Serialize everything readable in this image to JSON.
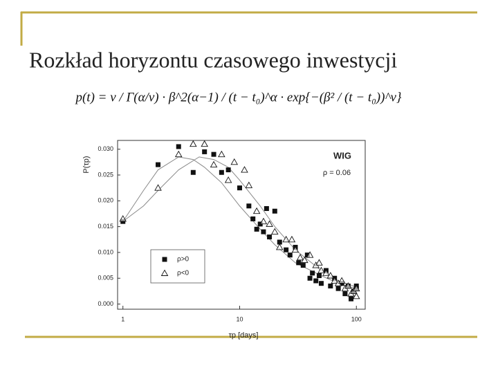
{
  "chart_data": {
    "type": "scatter",
    "title": "Rozkład horyzontu czasowego inwestycji",
    "formula": "p(t) = ν / Γ(α/ν) · β^2(α−1) / (t − t₀)^α · exp{−(β² / (t − t₀))^ν}",
    "annotations": [
      "WIG",
      "ρ = 0.06"
    ],
    "x_label": "τp [days]",
    "y_label": "P(τp)",
    "log_x": true,
    "legend": "lower left",
    "xlim": [
      0.9,
      119
    ],
    "xticks": [
      1,
      10,
      100
    ],
    "ylim": [
      -0.001,
      0.0317
    ],
    "yticks": [
      {
        "value": 0,
        "label": "0.000"
      },
      {
        "value": 0.005,
        "label": "0.005"
      },
      {
        "value": 0.01,
        "label": "0.010"
      },
      {
        "value": 0.015,
        "label": "0.015"
      },
      {
        "value": 0.02,
        "label": "0.020"
      },
      {
        "value": 0.025,
        "label": "0.025"
      },
      {
        "value": 0.03,
        "label": "0.030"
      }
    ],
    "series": [
      {
        "name": "ρ>0",
        "color": "#111111",
        "marker": "square",
        "x": [
          1,
          2,
          3,
          4,
          5,
          6,
          7,
          8,
          10,
          12,
          13,
          14,
          15,
          16,
          17,
          18,
          20,
          22,
          25,
          27,
          30,
          32,
          35,
          38,
          40,
          42,
          45,
          48,
          50,
          55,
          60,
          65,
          70,
          75,
          80,
          85,
          90,
          95,
          100,
          100
        ],
        "values": [
          0.016,
          0.027,
          0.0305,
          0.0255,
          0.0295,
          0.029,
          0.0255,
          0.026,
          0.0225,
          0.019,
          0.0165,
          0.0145,
          0.0155,
          0.014,
          0.0185,
          0.013,
          0.018,
          0.012,
          0.0105,
          0.0095,
          0.011,
          0.008,
          0.0075,
          0.0095,
          0.005,
          0.006,
          0.0045,
          0.0055,
          0.004,
          0.0065,
          0.0035,
          0.005,
          0.003,
          0.004,
          0.002,
          0.0035,
          0.001,
          0.0025,
          0.003,
          0.0035
        ]
      },
      {
        "name": "ρ<0",
        "color": "#111111",
        "marker": "triangle",
        "x": [
          1,
          2,
          3,
          4,
          5,
          6,
          7,
          8,
          9,
          11,
          12,
          14,
          16,
          18,
          20,
          22,
          25,
          28,
          30,
          33,
          36,
          40,
          45,
          48,
          50,
          55,
          60,
          65,
          70,
          75,
          80,
          85,
          90,
          95,
          100,
          100
        ],
        "values": [
          0.0165,
          0.0225,
          0.029,
          0.031,
          0.031,
          0.027,
          0.029,
          0.024,
          0.0275,
          0.026,
          0.023,
          0.018,
          0.016,
          0.0155,
          0.014,
          0.011,
          0.0125,
          0.0125,
          0.0105,
          0.009,
          0.0085,
          0.0095,
          0.0075,
          0.008,
          0.0065,
          0.006,
          0.0055,
          0.0045,
          0.004,
          0.0045,
          0.003,
          0.0035,
          0.002,
          0.0025,
          0.003,
          0.0015
        ]
      }
    ],
    "fits": [
      {
        "color": "#888888",
        "x": [
          1,
          1.5,
          2,
          3,
          4,
          5,
          7,
          10,
          15,
          20,
          30,
          50,
          70,
          100
        ],
        "values": [
          0.016,
          0.022,
          0.026,
          0.0285,
          0.028,
          0.0265,
          0.0235,
          0.019,
          0.0145,
          0.0115,
          0.008,
          0.0055,
          0.004,
          0.003
        ]
      },
      {
        "color": "#888888",
        "x": [
          1,
          1.5,
          2,
          3,
          4.5,
          6,
          8,
          10,
          15,
          20,
          30,
          50,
          70,
          100
        ],
        "values": [
          0.016,
          0.019,
          0.022,
          0.026,
          0.0285,
          0.028,
          0.0265,
          0.024,
          0.019,
          0.015,
          0.0105,
          0.0065,
          0.0045,
          0.0033
        ]
      }
    ]
  }
}
